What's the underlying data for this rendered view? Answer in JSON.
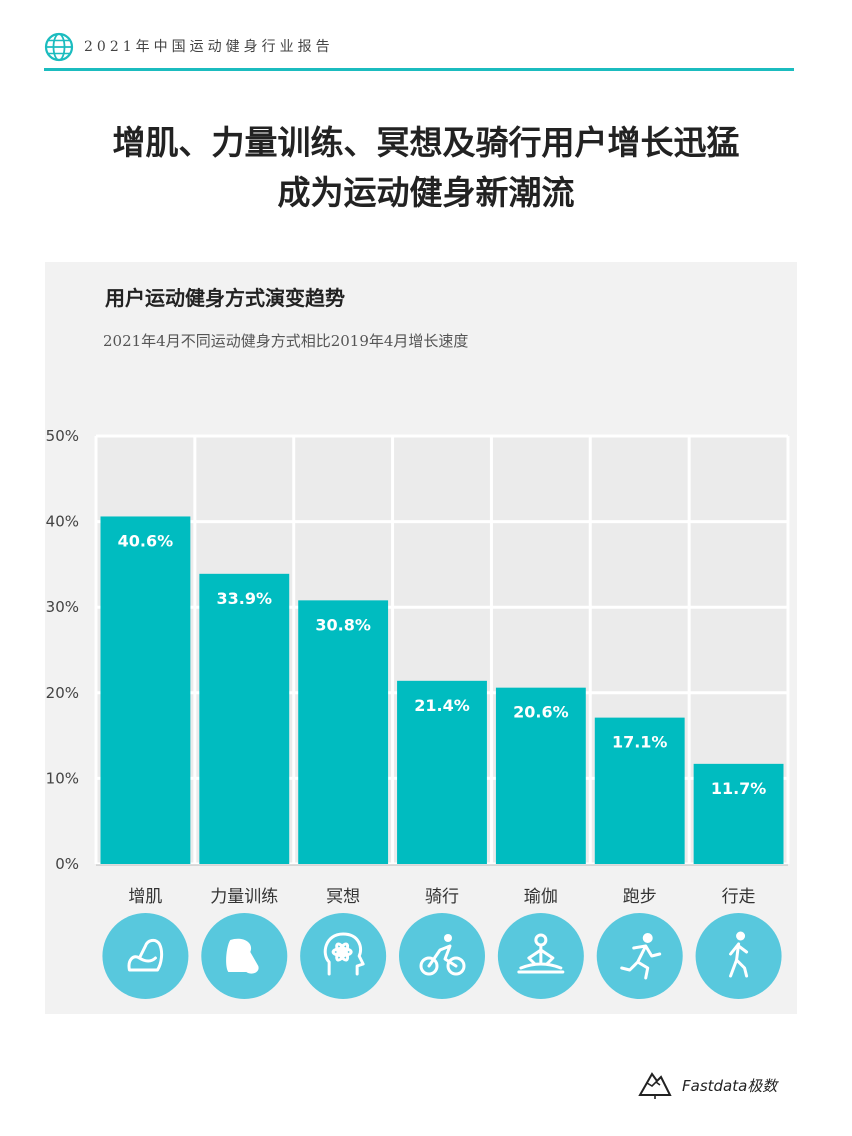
{
  "header": {
    "report_title": "2021年中国运动健身行业报告",
    "accent_color": "#1bbcbf"
  },
  "main_title": {
    "line1": "增肌、力量训练、冥想及骑行用户增长迅猛",
    "line2": "成为运动健身新潮流"
  },
  "brand": {
    "name": "Fastdata极数"
  },
  "colors": {
    "bar": "#00bcc0",
    "icon_circle": "#58c8dd",
    "panel": "#f2f2f2"
  },
  "chart_data": {
    "type": "bar",
    "title": "用户运动健身方式演变趋势",
    "subtitle": "2021年4月不同运动健身方式相比2019年4月增长速度",
    "categories": [
      "增肌",
      "力量训练",
      "冥想",
      "骑行",
      "瑜伽",
      "跑步",
      "行走"
    ],
    "values": [
      40.6,
      33.9,
      30.8,
      21.4,
      20.6,
      17.1,
      11.7
    ],
    "value_labels": [
      "40.6%",
      "33.9%",
      "30.8%",
      "21.4%",
      "20.6%",
      "17.1%",
      "11.7%"
    ],
    "ylim": [
      0,
      50
    ],
    "yticks": [
      0,
      10,
      20,
      30,
      40,
      50
    ],
    "ytick_labels": [
      "0%",
      "10%",
      "20%",
      "30%",
      "40%",
      "50%"
    ],
    "grid": true,
    "icons": [
      "flexed-arm-icon",
      "strong-arm-icon",
      "meditation-head-icon",
      "cyclist-icon",
      "yoga-icon",
      "runner-icon",
      "walker-icon"
    ]
  }
}
